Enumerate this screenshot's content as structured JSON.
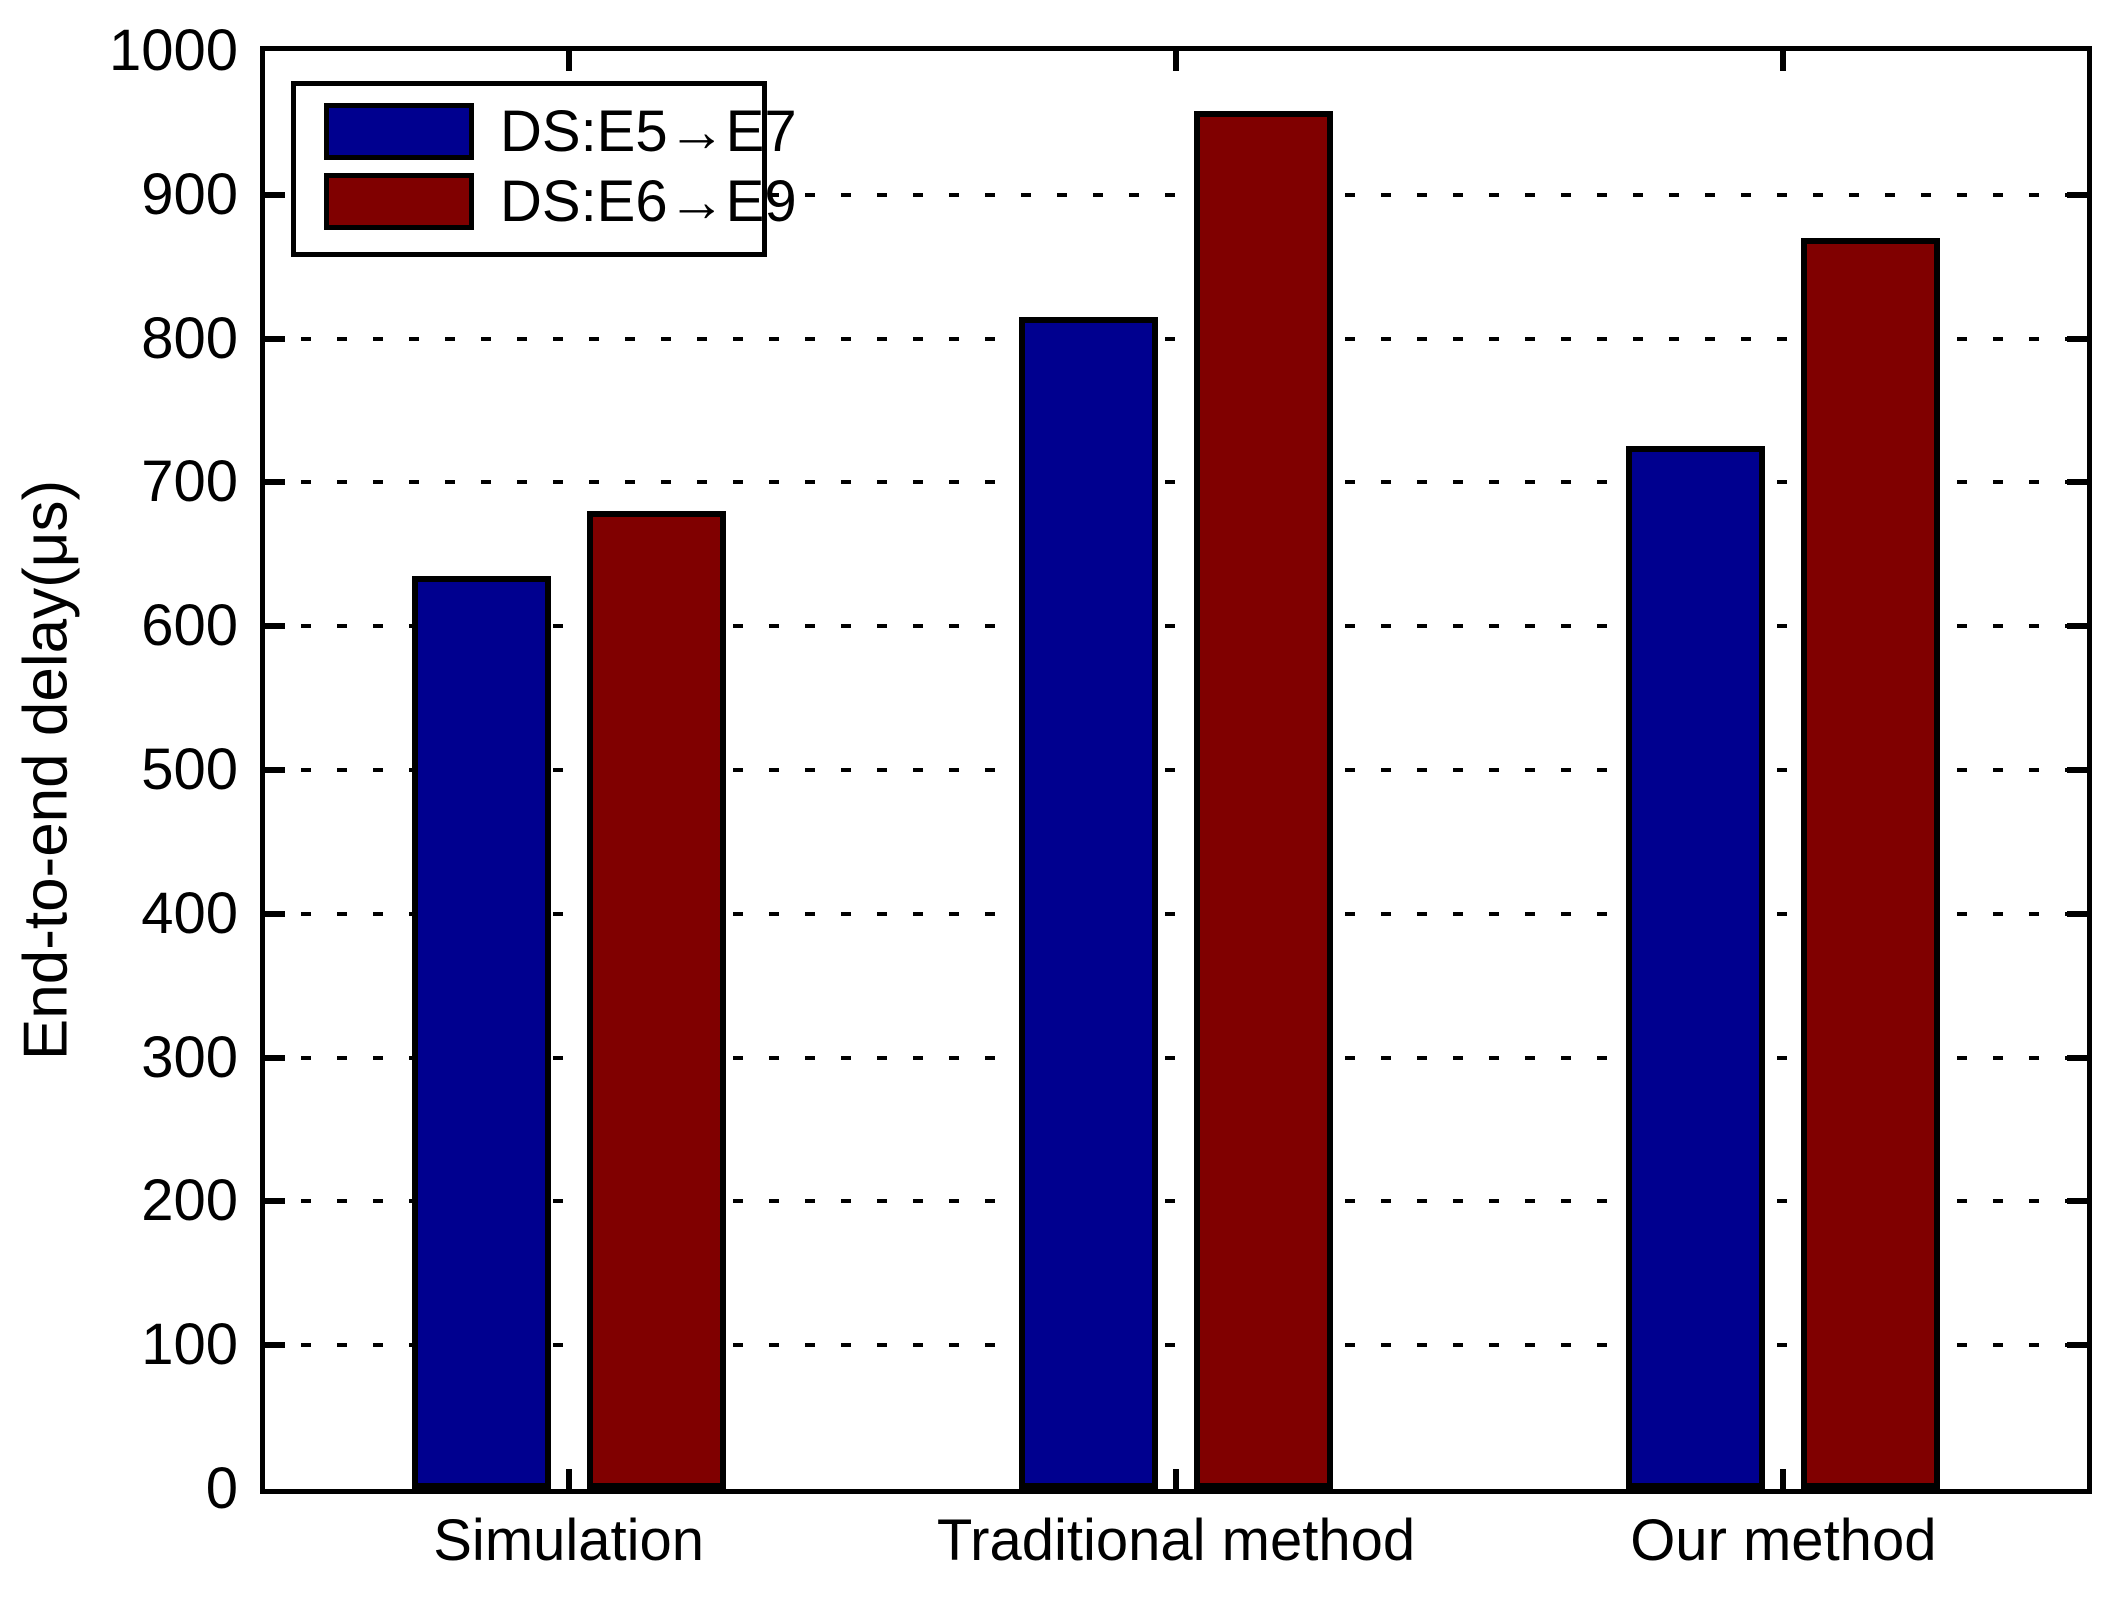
{
  "chart_data": {
    "type": "bar",
    "title": "",
    "xlabel": "",
    "ylabel": "End-to-end delay(μs)",
    "ylim": [
      0,
      1000
    ],
    "yticks": [
      0,
      100,
      200,
      300,
      400,
      500,
      600,
      700,
      800,
      900,
      1000
    ],
    "categories": [
      "Simulation",
      "Traditional method",
      "Our method"
    ],
    "series": [
      {
        "name": "DS:E5→E7",
        "color": "#00008F",
        "values": [
          635,
          815,
          725
        ]
      },
      {
        "name": "DS:E6→E9",
        "color": "#800000",
        "values": [
          680,
          958,
          870
        ]
      }
    ],
    "grid": "horizontal-dotted",
    "grid_color": "#000000",
    "axis_color": "#000000",
    "legend_position": "top-left",
    "background_color": "#FFFFFF"
  }
}
